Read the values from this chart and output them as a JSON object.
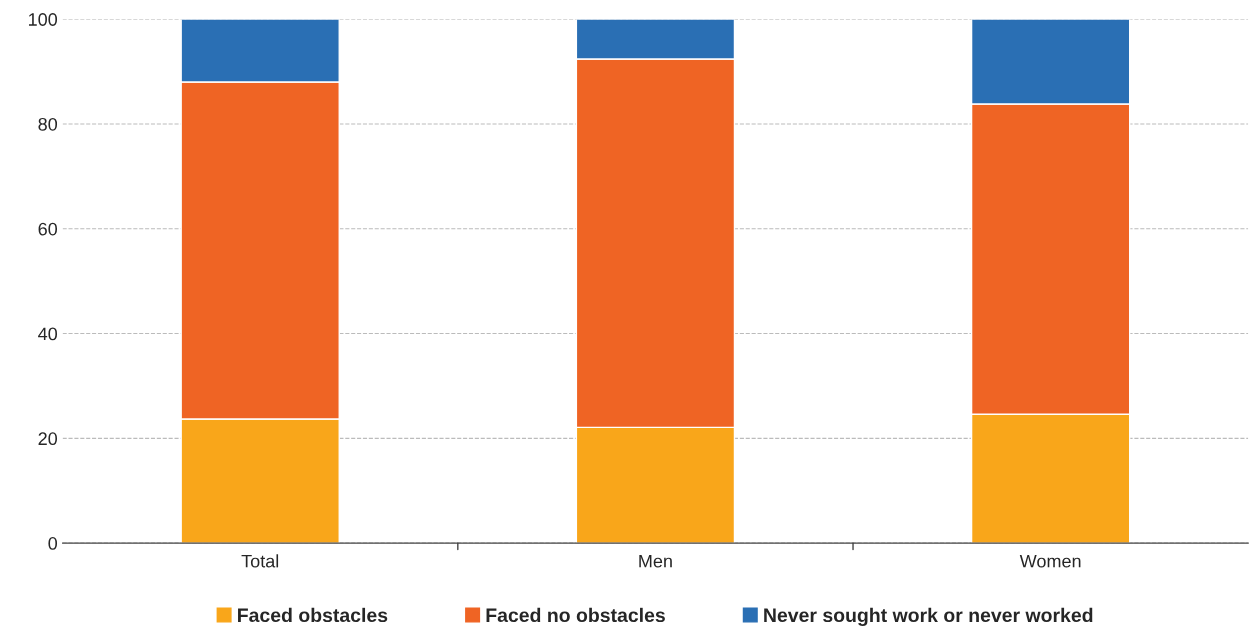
{
  "chart_data": {
    "type": "bar",
    "stacked": true,
    "categories": [
      "Total",
      "Men",
      "Women"
    ],
    "series": [
      {
        "name": "Faced obstacles",
        "color": "#f9a61a",
        "values": [
          23.7,
          22.1,
          24.6
        ]
      },
      {
        "name": "Faced no obstacles",
        "color": "#ef6424",
        "values": [
          64.3,
          70.3,
          59.2
        ]
      },
      {
        "name": "Never sought work or never worked",
        "color": "#2a6fb4",
        "values": [
          12.0,
          7.6,
          16.2
        ]
      }
    ],
    "ylim": [
      0,
      100
    ],
    "yticks": [
      0,
      20,
      40,
      60,
      80,
      100
    ],
    "grid": "y",
    "legend": "bottom"
  }
}
